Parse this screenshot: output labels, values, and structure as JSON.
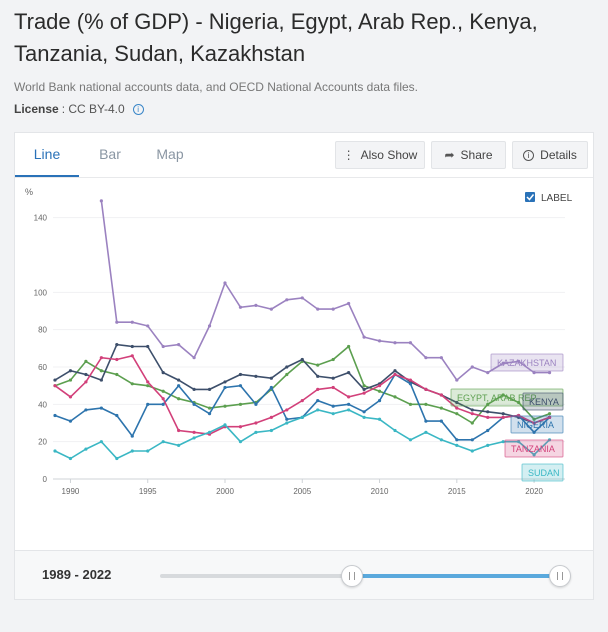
{
  "header": {
    "title": "Trade (% of GDP) - Nigeria, Egypt, Arab Rep., Kenya, Tanzania, Sudan, Kazakhstan",
    "source": "World Bank national accounts data, and OECD National Accounts data files.",
    "license_label": "License",
    "license_value": ": CC BY-4.0"
  },
  "tabs": [
    {
      "label": "Line",
      "active": true
    },
    {
      "label": "Bar",
      "active": false
    },
    {
      "label": "Map",
      "active": false
    }
  ],
  "toolbar": {
    "also_show": "Also Show",
    "share": "Share",
    "details": "Details"
  },
  "label_toggle": {
    "label": "LABEL",
    "checked": true
  },
  "range": {
    "label": "1989 - 2022"
  },
  "colors": {
    "accent": "#2a72b8",
    "kazakhstan": "#9b82c0",
    "egypt": "#5c9f4f",
    "kenya": "#3d4f6b",
    "nigeria": "#2d74ad",
    "tanzania": "#d2407a",
    "sudan": "#3ab7c4"
  },
  "chart_data": {
    "type": "line",
    "ylabel": "%",
    "xlim": [
      1989,
      2022
    ],
    "ylim": [
      0,
      150
    ],
    "xticks": [
      1990,
      1995,
      2000,
      2005,
      2010,
      2015,
      2020
    ],
    "yticks": [
      0,
      20,
      40,
      60,
      80,
      100,
      140
    ],
    "series": [
      {
        "name": "KAZAKHSTAN",
        "color": "#9b82c0",
        "x": [
          1992,
          1993,
          1994,
          1995,
          1996,
          1997,
          1998,
          1999,
          2000,
          2001,
          2002,
          2003,
          2004,
          2005,
          2006,
          2007,
          2008,
          2009,
          2010,
          2011,
          2012,
          2013,
          2014,
          2015,
          2016,
          2017,
          2018,
          2019,
          2020,
          2021
        ],
        "values": [
          149,
          84,
          84,
          82,
          71,
          72,
          65,
          82,
          105,
          92,
          93,
          91,
          96,
          97,
          91,
          91,
          94,
          76,
          74,
          73,
          73,
          65,
          65,
          53,
          60,
          57,
          62,
          63,
          57,
          57
        ]
      },
      {
        "name": "EGYPT, ARAB REP.",
        "color": "#5c9f4f",
        "x": [
          1989,
          1990,
          1991,
          1992,
          1993,
          1994,
          1995,
          1996,
          1997,
          1998,
          1999,
          2000,
          2001,
          2002,
          2003,
          2004,
          2005,
          2006,
          2007,
          2008,
          2009,
          2010,
          2011,
          2012,
          2013,
          2014,
          2015,
          2016,
          2017,
          2018,
          2019,
          2020,
          2021
        ],
        "values": [
          50,
          53,
          63,
          58,
          56,
          51,
          50,
          47,
          43,
          41,
          38,
          39,
          40,
          41,
          48,
          56,
          63,
          61,
          64,
          71,
          50,
          47,
          44,
          40,
          40,
          38,
          35,
          30,
          40,
          45,
          41,
          32,
          35
        ]
      },
      {
        "name": "KENYA",
        "color": "#3d4f6b",
        "x": [
          1989,
          1990,
          1991,
          1992,
          1993,
          1994,
          1995,
          1996,
          1997,
          1998,
          1999,
          2000,
          2001,
          2002,
          2003,
          2004,
          2005,
          2006,
          2007,
          2008,
          2009,
          2010,
          2011,
          2012,
          2013,
          2014,
          2015,
          2016,
          2017,
          2018,
          2019,
          2020,
          2021
        ],
        "values": [
          53,
          58,
          56,
          53,
          72,
          71,
          71,
          57,
          53,
          48,
          48,
          52,
          56,
          55,
          54,
          60,
          64,
          55,
          54,
          57,
          48,
          51,
          58,
          52,
          48,
          45,
          41,
          37,
          36,
          35,
          33,
          30,
          33
        ]
      },
      {
        "name": "NIGERIA",
        "color": "#2d74ad",
        "x": [
          1989,
          1990,
          1991,
          1992,
          1993,
          1994,
          1995,
          1996,
          1997,
          1998,
          1999,
          2000,
          2001,
          2002,
          2003,
          2004,
          2005,
          2006,
          2007,
          2008,
          2009,
          2010,
          2011,
          2012,
          2013,
          2014,
          2015,
          2016,
          2017,
          2018,
          2019,
          2020,
          2021
        ],
        "values": [
          34,
          31,
          37,
          38,
          34,
          23,
          40,
          40,
          50,
          40,
          35,
          49,
          50,
          40,
          49,
          32,
          33,
          42,
          39,
          40,
          36,
          42,
          56,
          51,
          31,
          31,
          21,
          21,
          26,
          33,
          34,
          25,
          33
        ]
      },
      {
        "name": "TANZANIA",
        "color": "#d2407a",
        "x": [
          1989,
          1990,
          1991,
          1992,
          1993,
          1994,
          1995,
          1996,
          1997,
          1998,
          1999,
          2000,
          2001,
          2002,
          2003,
          2004,
          2005,
          2006,
          2007,
          2008,
          2009,
          2010,
          2011,
          2012,
          2013,
          2014,
          2015,
          2016,
          2017,
          2018,
          2019,
          2020,
          2021
        ],
        "values": [
          50,
          44,
          52,
          65,
          64,
          66,
          52,
          43,
          26,
          25,
          24,
          28,
          28,
          30,
          33,
          37,
          42,
          48,
          49,
          44,
          46,
          50,
          56,
          53,
          48,
          45,
          38,
          35,
          33,
          33,
          34,
          30,
          33
        ]
      },
      {
        "name": "SUDAN",
        "color": "#3ab7c4",
        "x": [
          1989,
          1990,
          1991,
          1992,
          1993,
          1994,
          1995,
          1996,
          1997,
          1998,
          1999,
          2000,
          2001,
          2002,
          2003,
          2004,
          2005,
          2006,
          2007,
          2008,
          2009,
          2010,
          2011,
          2012,
          2013,
          2014,
          2015,
          2016,
          2017,
          2018,
          2019,
          2020,
          2021
        ],
        "values": [
          15,
          11,
          16,
          20,
          11,
          15,
          15,
          20,
          18,
          22,
          25,
          29,
          20,
          25,
          26,
          30,
          33,
          37,
          35,
          37,
          33,
          32,
          26,
          21,
          25,
          21,
          18,
          15,
          18,
          20,
          20,
          13,
          21
        ]
      }
    ]
  }
}
